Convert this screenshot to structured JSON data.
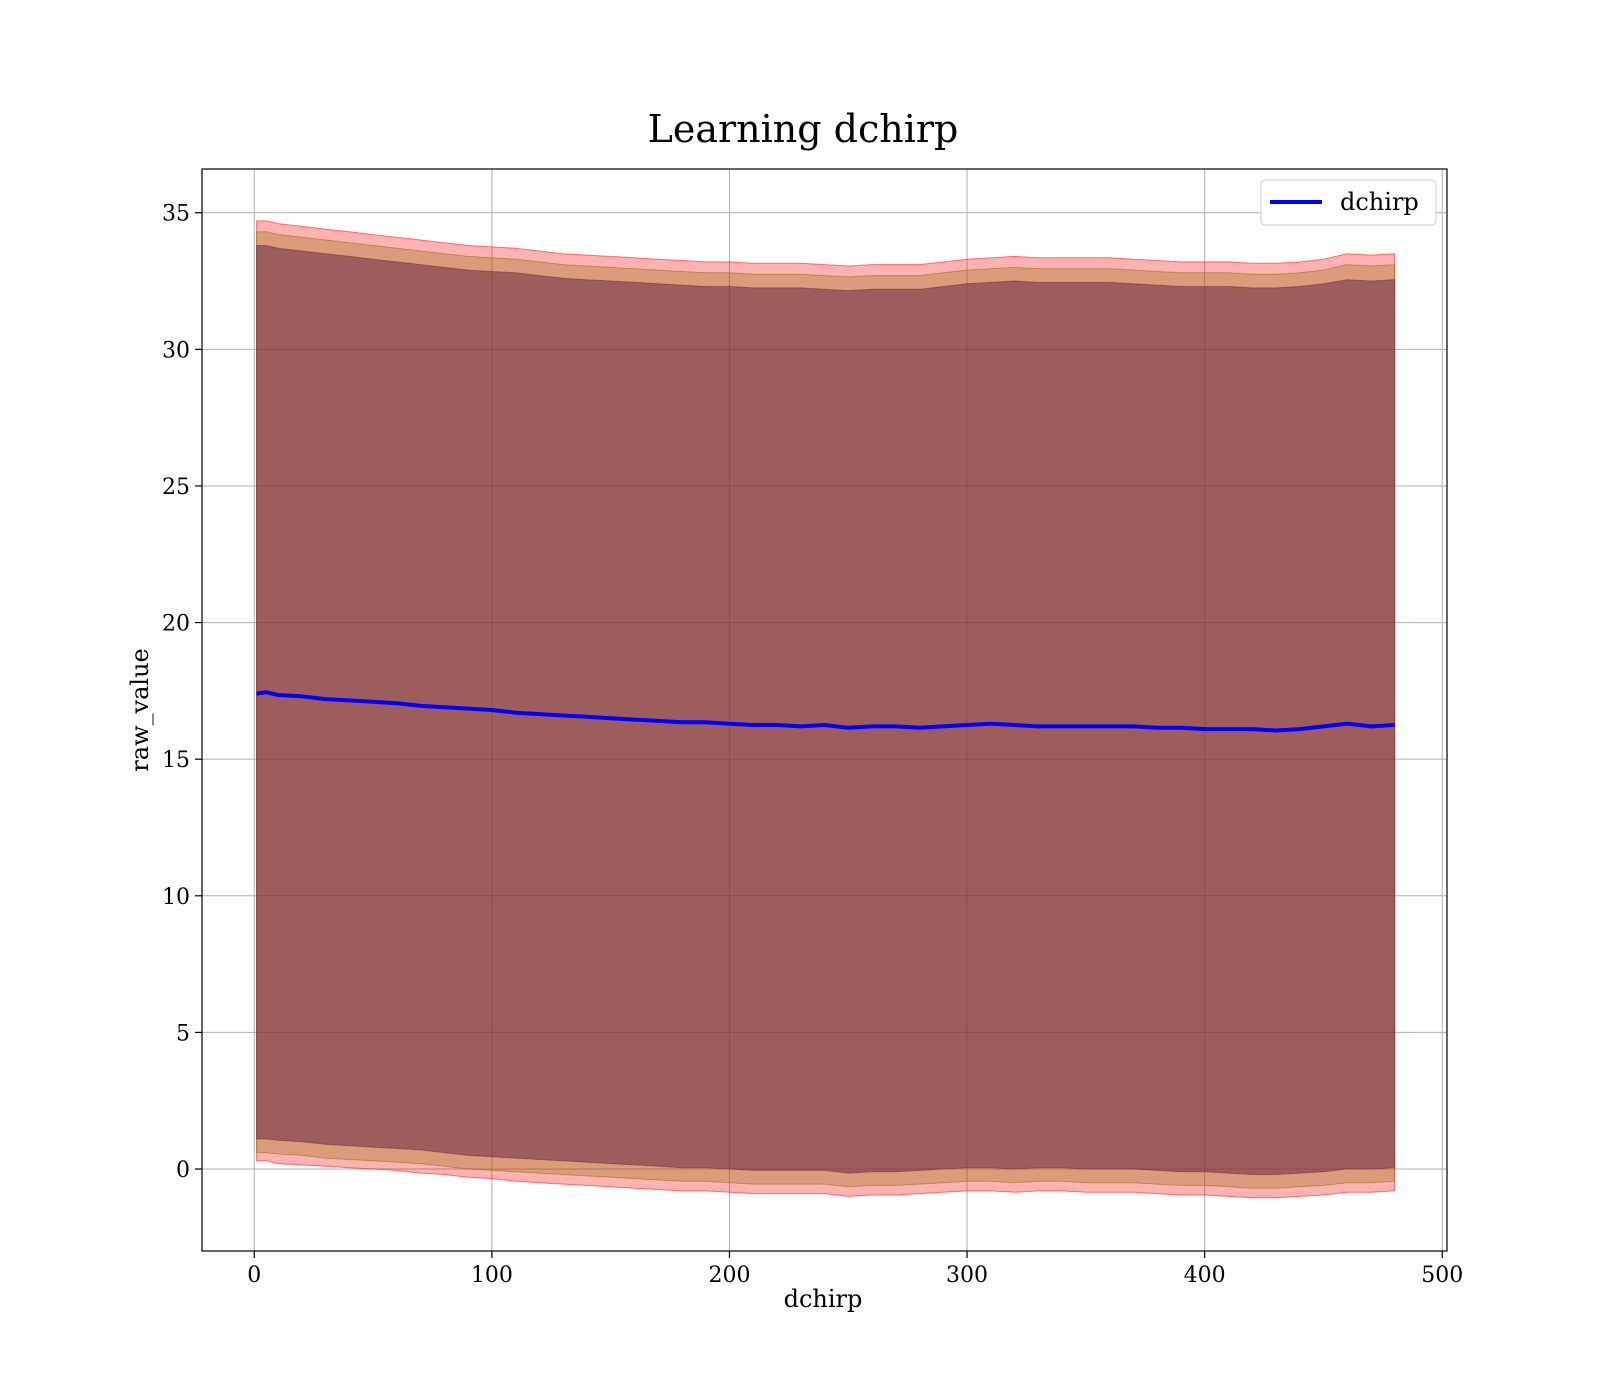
{
  "chart_data": {
    "type": "line",
    "title": "Learning dchirp",
    "xlabel": "dchirp",
    "ylabel": "raw_value",
    "xlim": [
      -22,
      502
    ],
    "ylim": [
      -3,
      36.6
    ],
    "xticks": [
      0,
      100,
      200,
      300,
      400,
      500
    ],
    "yticks": [
      0,
      5,
      10,
      15,
      20,
      25,
      30,
      35
    ],
    "xtick_labels": [
      "0",
      "100",
      "200",
      "300",
      "400",
      "500"
    ],
    "ytick_labels": [
      "0",
      "5",
      "10",
      "15",
      "20",
      "25",
      "30",
      "35"
    ],
    "grid": true,
    "legend_position": "top-right",
    "series": [
      {
        "name": "dchirp",
        "color": "#0000ff",
        "x": [
          1,
          5,
          10,
          20,
          30,
          40,
          50,
          60,
          70,
          80,
          90,
          100,
          110,
          120,
          130,
          140,
          150,
          160,
          170,
          180,
          190,
          200,
          210,
          220,
          230,
          240,
          250,
          260,
          270,
          280,
          290,
          300,
          310,
          320,
          330,
          340,
          350,
          360,
          370,
          380,
          390,
          400,
          410,
          420,
          430,
          440,
          450,
          460,
          470,
          480
        ],
        "y": [
          17.4,
          17.45,
          17.35,
          17.3,
          17.2,
          17.15,
          17.1,
          17.05,
          16.95,
          16.9,
          16.85,
          16.8,
          16.7,
          16.65,
          16.6,
          16.55,
          16.5,
          16.45,
          16.4,
          16.35,
          16.35,
          16.3,
          16.25,
          16.25,
          16.2,
          16.25,
          16.15,
          16.2,
          16.2,
          16.15,
          16.2,
          16.25,
          16.3,
          16.25,
          16.2,
          16.2,
          16.2,
          16.2,
          16.2,
          16.15,
          16.15,
          16.1,
          16.1,
          16.1,
          16.05,
          16.1,
          16.2,
          16.3,
          16.2,
          16.25
        ]
      }
    ],
    "bands": [
      {
        "color": "#ff0000",
        "opacity": 0.3,
        "upper": [
          34.7,
          34.7,
          34.6,
          34.5,
          34.4,
          34.3,
          34.2,
          34.1,
          34.0,
          33.9,
          33.8,
          33.75,
          33.7,
          33.6,
          33.5,
          33.45,
          33.4,
          33.35,
          33.3,
          33.25,
          33.2,
          33.2,
          33.15,
          33.15,
          33.15,
          33.1,
          33.05,
          33.1,
          33.1,
          33.1,
          33.2,
          33.3,
          33.35,
          33.4,
          33.35,
          33.35,
          33.35,
          33.35,
          33.3,
          33.25,
          33.2,
          33.2,
          33.2,
          33.15,
          33.15,
          33.2,
          33.3,
          33.5,
          33.45,
          33.5
        ],
        "lower": [
          0.3,
          0.3,
          0.2,
          0.15,
          0.1,
          0.05,
          0.0,
          -0.05,
          -0.15,
          -0.2,
          -0.3,
          -0.35,
          -0.45,
          -0.5,
          -0.55,
          -0.6,
          -0.65,
          -0.7,
          -0.75,
          -0.8,
          -0.8,
          -0.85,
          -0.9,
          -0.9,
          -0.9,
          -0.9,
          -1.0,
          -0.95,
          -0.95,
          -0.9,
          -0.85,
          -0.8,
          -0.8,
          -0.85,
          -0.8,
          -0.8,
          -0.85,
          -0.85,
          -0.85,
          -0.9,
          -0.95,
          -0.95,
          -1.0,
          -1.05,
          -1.05,
          -1.0,
          -0.95,
          -0.85,
          -0.85,
          -0.8
        ]
      },
      {
        "color": "#8b6b00",
        "opacity": 0.3,
        "upper": [
          34.3,
          34.3,
          34.2,
          34.1,
          34.0,
          33.9,
          33.8,
          33.7,
          33.6,
          33.5,
          33.4,
          33.35,
          33.3,
          33.2,
          33.1,
          33.05,
          33.0,
          32.95,
          32.9,
          32.85,
          32.8,
          32.8,
          32.75,
          32.75,
          32.75,
          32.7,
          32.65,
          32.7,
          32.7,
          32.7,
          32.8,
          32.9,
          32.95,
          33.0,
          32.95,
          32.95,
          32.95,
          32.95,
          32.9,
          32.85,
          32.8,
          32.8,
          32.8,
          32.75,
          32.75,
          32.8,
          32.9,
          33.1,
          33.05,
          33.1
        ],
        "lower": [
          0.6,
          0.6,
          0.55,
          0.5,
          0.4,
          0.35,
          0.3,
          0.25,
          0.2,
          0.1,
          0.0,
          -0.05,
          -0.1,
          -0.15,
          -0.2,
          -0.25,
          -0.3,
          -0.35,
          -0.4,
          -0.45,
          -0.45,
          -0.5,
          -0.55,
          -0.55,
          -0.55,
          -0.55,
          -0.65,
          -0.6,
          -0.6,
          -0.55,
          -0.5,
          -0.45,
          -0.45,
          -0.5,
          -0.45,
          -0.45,
          -0.5,
          -0.5,
          -0.5,
          -0.55,
          -0.6,
          -0.6,
          -0.65,
          -0.7,
          -0.7,
          -0.65,
          -0.6,
          -0.5,
          -0.5,
          -0.45
        ]
      },
      {
        "color": "#6b2a44",
        "opacity": 0.55,
        "upper": [
          33.8,
          33.8,
          33.7,
          33.6,
          33.5,
          33.4,
          33.3,
          33.2,
          33.1,
          33.0,
          32.9,
          32.85,
          32.8,
          32.7,
          32.6,
          32.55,
          32.5,
          32.45,
          32.4,
          32.35,
          32.3,
          32.3,
          32.25,
          32.25,
          32.25,
          32.2,
          32.15,
          32.2,
          32.2,
          32.2,
          32.3,
          32.4,
          32.45,
          32.5,
          32.45,
          32.45,
          32.45,
          32.45,
          32.4,
          32.35,
          32.3,
          32.3,
          32.3,
          32.25,
          32.25,
          32.3,
          32.4,
          32.55,
          32.5,
          32.55
        ],
        "lower": [
          1.1,
          1.1,
          1.05,
          1.0,
          0.9,
          0.85,
          0.8,
          0.75,
          0.7,
          0.6,
          0.5,
          0.45,
          0.4,
          0.35,
          0.3,
          0.25,
          0.2,
          0.15,
          0.1,
          0.05,
          0.05,
          0.0,
          -0.05,
          -0.05,
          -0.05,
          -0.05,
          -0.15,
          -0.1,
          -0.1,
          -0.05,
          0.0,
          0.05,
          0.05,
          0.0,
          0.05,
          0.05,
          0.0,
          0.0,
          0.0,
          -0.05,
          -0.1,
          -0.1,
          -0.15,
          -0.2,
          -0.2,
          -0.15,
          -0.1,
          0.0,
          0.0,
          0.05
        ]
      }
    ]
  }
}
